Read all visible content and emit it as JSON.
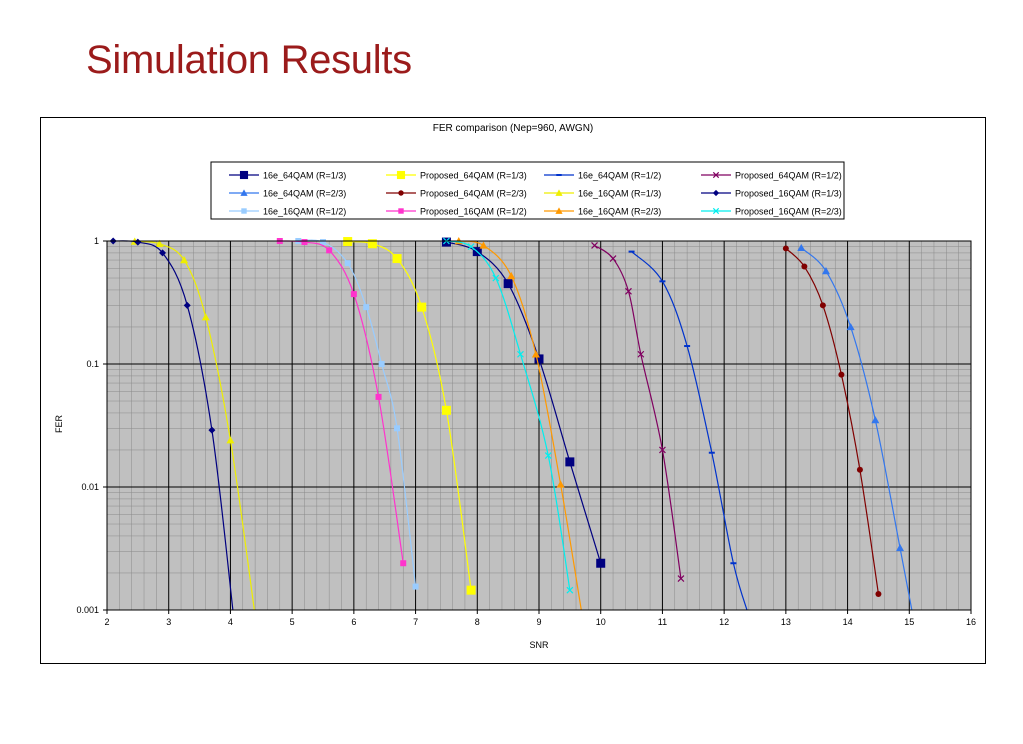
{
  "slide": {
    "title": "Simulation Results"
  },
  "chart_data": {
    "type": "line",
    "title": "FER comparison (Nep=960, AWGN)",
    "xlabel": "SNR",
    "ylabel": "FER",
    "xlim": [
      2,
      16
    ],
    "ylim": [
      0.001,
      1
    ],
    "yscale": "log",
    "grid": true,
    "legend_position": "top",
    "x_ticks": [
      "2",
      "3",
      "4",
      "5",
      "6",
      "7",
      "8",
      "9",
      "10",
      "11",
      "12",
      "13",
      "14",
      "15",
      "16"
    ],
    "y_ticks": [
      "1",
      "0.1",
      "0.01",
      "0.001"
    ],
    "series": [
      {
        "name": "16e_64QAM (R=1/3)",
        "color": "#000080",
        "marker": "square-big",
        "points": [
          [
            7.5,
            0.98
          ],
          [
            8.0,
            0.82
          ],
          [
            8.5,
            0.45
          ],
          [
            9.0,
            0.11
          ],
          [
            9.5,
            0.016
          ],
          [
            10.0,
            0.0024
          ]
        ]
      },
      {
        "name": "Proposed_64QAM (R=1/3)",
        "color": "#ffff00",
        "marker": "square-big",
        "points": [
          [
            5.9,
            0.99
          ],
          [
            6.3,
            0.95
          ],
          [
            6.7,
            0.72
          ],
          [
            7.1,
            0.29
          ],
          [
            7.5,
            0.042
          ],
          [
            7.9,
            0.00145
          ]
        ]
      },
      {
        "name": "16e_64QAM (R=1/2)",
        "color": "#0033cc",
        "marker": "dash",
        "points": [
          [
            10.5,
            0.82
          ],
          [
            11.0,
            0.47
          ],
          [
            11.4,
            0.14
          ],
          [
            11.8,
            0.019
          ],
          [
            12.15,
            0.0024
          ],
          [
            12.4,
            0.0009
          ]
        ]
      },
      {
        "name": "Proposed_64QAM (R=1/2)",
        "color": "#800060",
        "marker": "x",
        "points": [
          [
            9.9,
            0.92
          ],
          [
            10.2,
            0.72
          ],
          [
            10.45,
            0.39
          ],
          [
            10.65,
            0.12
          ],
          [
            11.0,
            0.02
          ],
          [
            11.3,
            0.0018
          ]
        ]
      },
      {
        "name": "16e_64QAM (R=2/3)",
        "color": "#3377ee",
        "marker": "triangle",
        "points": [
          [
            13.25,
            0.88
          ],
          [
            13.65,
            0.57
          ],
          [
            14.05,
            0.2
          ],
          [
            14.45,
            0.035
          ],
          [
            14.85,
            0.0032
          ],
          [
            15.05,
            0.00095
          ]
        ]
      },
      {
        "name": "Proposed_64QAM (R=2/3)",
        "color": "#800000",
        "marker": "circle",
        "points": [
          [
            13.0,
            0.87
          ],
          [
            13.3,
            0.62
          ],
          [
            13.6,
            0.3
          ],
          [
            13.9,
            0.082
          ],
          [
            14.2,
            0.0138
          ],
          [
            14.5,
            0.00135
          ]
        ]
      },
      {
        "name": "16e_16QAM (R=1/3)",
        "color": "#eeee00",
        "marker": "triangle",
        "points": [
          [
            2.45,
            0.99
          ],
          [
            2.85,
            0.95
          ],
          [
            3.25,
            0.7
          ],
          [
            3.6,
            0.24
          ],
          [
            4.0,
            0.024
          ],
          [
            4.4,
            0.0009
          ]
        ]
      },
      {
        "name": "Proposed_16QAM (R=1/3)",
        "color": "#000080",
        "marker": "diamond",
        "points": [
          [
            2.1,
            1.0
          ],
          [
            2.5,
            0.98
          ],
          [
            2.9,
            0.8
          ],
          [
            3.3,
            0.3
          ],
          [
            3.7,
            0.029
          ],
          [
            4.05,
            0.0009
          ]
        ]
      },
      {
        "name": "16e_16QAM (R=1/2)",
        "color": "#99ccff",
        "marker": "square",
        "points": [
          [
            5.1,
            1.0
          ],
          [
            5.5,
            0.98
          ],
          [
            5.9,
            0.66
          ],
          [
            6.2,
            0.29
          ],
          [
            6.45,
            0.1
          ],
          [
            6.7,
            0.03
          ],
          [
            7.0,
            0.00155
          ]
        ]
      },
      {
        "name": "Proposed_16QAM (R=1/2)",
        "color": "#ff33cc",
        "marker": "square",
        "points": [
          [
            4.8,
            1.0
          ],
          [
            5.2,
            0.98
          ],
          [
            5.6,
            0.84
          ],
          [
            6.0,
            0.37
          ],
          [
            6.4,
            0.054
          ],
          [
            6.8,
            0.0024
          ]
        ]
      },
      {
        "name": "16e_16QAM (R=2/3)",
        "color": "#ff9900",
        "marker": "triangle",
        "points": [
          [
            7.7,
            1.0
          ],
          [
            8.1,
            0.92
          ],
          [
            8.55,
            0.52
          ],
          [
            8.95,
            0.12
          ],
          [
            9.35,
            0.0105
          ],
          [
            9.7,
            0.0009
          ]
        ]
      },
      {
        "name": "Proposed_16QAM (R=2/3)",
        "color": "#00eeee",
        "marker": "x",
        "points": [
          [
            7.5,
            1.0
          ],
          [
            7.9,
            0.9
          ],
          [
            8.3,
            0.5
          ],
          [
            8.7,
            0.12
          ],
          [
            9.15,
            0.018
          ],
          [
            9.5,
            0.00145
          ]
        ]
      }
    ]
  }
}
